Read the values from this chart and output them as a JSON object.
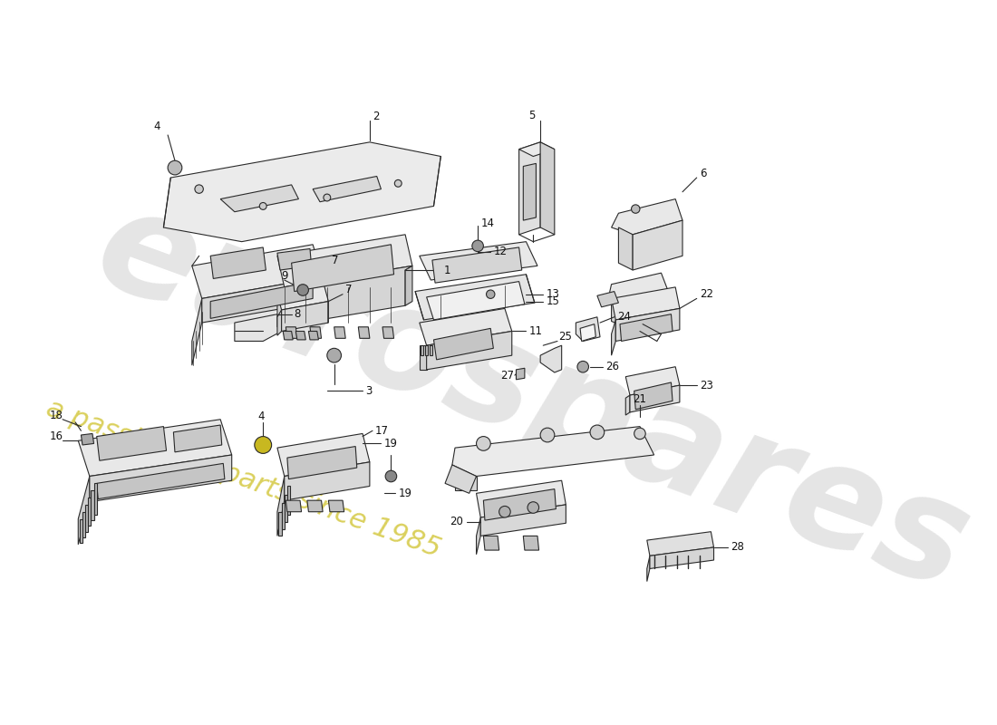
{
  "bg_color": "#ffffff",
  "lc": "#2a2a2a",
  "lw": 0.8,
  "fill_top": "#f0f0f0",
  "fill_front": "#d8d8d8",
  "fill_side": "#e4e4e4",
  "fill_inner": "#c8c8c8",
  "wm1": "eurospares",
  "wm2": "a passion for parts since 1985",
  "wm1_color": "#c5c5c5",
  "wm2_color": "#d4c840",
  "lfs": 8.5,
  "label_color": "#111111"
}
